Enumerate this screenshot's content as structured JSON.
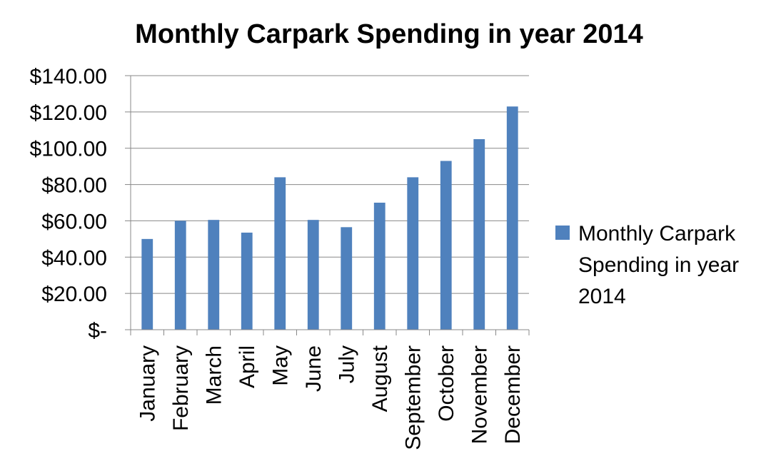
{
  "chart_data": {
    "type": "bar",
    "title": "Monthly Carpark Spending in year 2014",
    "categories": [
      "January",
      "February",
      "March",
      "April",
      "May",
      "June",
      "July",
      "August",
      "September",
      "October",
      "November",
      "December"
    ],
    "series": [
      {
        "name": "Monthly Carpark Spending in year 2014",
        "values": [
          50,
          60,
          60.5,
          53.5,
          84,
          60.5,
          56.5,
          70,
          84,
          93,
          105,
          123
        ],
        "color": "#4F81BD"
      }
    ],
    "ylim": [
      0,
      140
    ],
    "ytick_values": [
      0,
      20,
      40,
      60,
      80,
      100,
      120,
      140
    ],
    "ytick_labels": [
      "$-",
      "$20.00",
      "$40.00",
      "$60.00",
      "$80.00",
      "$100.00",
      "$120.00",
      "$140.00"
    ],
    "legend": {
      "position": "right",
      "lines": [
        "Monthly Carpark",
        "Spending in year",
        "2014"
      ]
    },
    "grid": true,
    "xlabel": "",
    "ylabel": ""
  },
  "colors": {
    "gridline": "#888888",
    "axis": "#888888",
    "bar": "#4F81BD"
  }
}
